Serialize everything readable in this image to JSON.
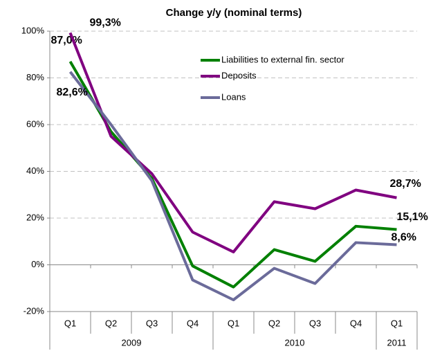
{
  "chart_data": {
    "type": "line",
    "title": "Change y/y (nominal terms)",
    "categories": [
      "Q1",
      "Q2",
      "Q3",
      "Q4",
      "Q1",
      "Q2",
      "Q3",
      "Q4",
      "Q1"
    ],
    "category_groups": [
      "2009",
      "2009",
      "2009",
      "2009",
      "2010",
      "2010",
      "2010",
      "2010",
      "2011"
    ],
    "series": [
      {
        "name": "Liabilities to external fin. sector",
        "color": "#008000",
        "values": [
          87.0,
          57,
          37,
          -0.5,
          -9.5,
          6.5,
          1.5,
          16.5,
          15.1
        ],
        "value_labels": [
          "87,0%",
          null,
          null,
          null,
          null,
          null,
          null,
          null,
          "15,1%"
        ]
      },
      {
        "name": "Deposits",
        "color": "#800080",
        "values": [
          99.3,
          55,
          39,
          14,
          5.5,
          27,
          24,
          32,
          28.7
        ],
        "value_labels": [
          "99,3%",
          null,
          null,
          null,
          null,
          null,
          null,
          null,
          "28,7%"
        ]
      },
      {
        "name": "Loans",
        "color": "#6b6b9a",
        "values": [
          82.6,
          60,
          36,
          -6.5,
          -15,
          -1.5,
          -8,
          9.5,
          8.6
        ],
        "value_labels": [
          "82,6%",
          null,
          null,
          null,
          null,
          null,
          null,
          null,
          "8,6%"
        ]
      }
    ],
    "ylim": [
      -20,
      100
    ],
    "yticks": [
      {
        "value": -20,
        "label": "-20%"
      },
      {
        "value": 0,
        "label": "0%"
      },
      {
        "value": 20,
        "label": "20%"
      },
      {
        "value": 40,
        "label": "40%"
      },
      {
        "value": 60,
        "label": "60%"
      },
      {
        "value": 80,
        "label": "80%"
      },
      {
        "value": 100,
        "label": "100%"
      }
    ],
    "grid": true,
    "legend": "upper center"
  }
}
